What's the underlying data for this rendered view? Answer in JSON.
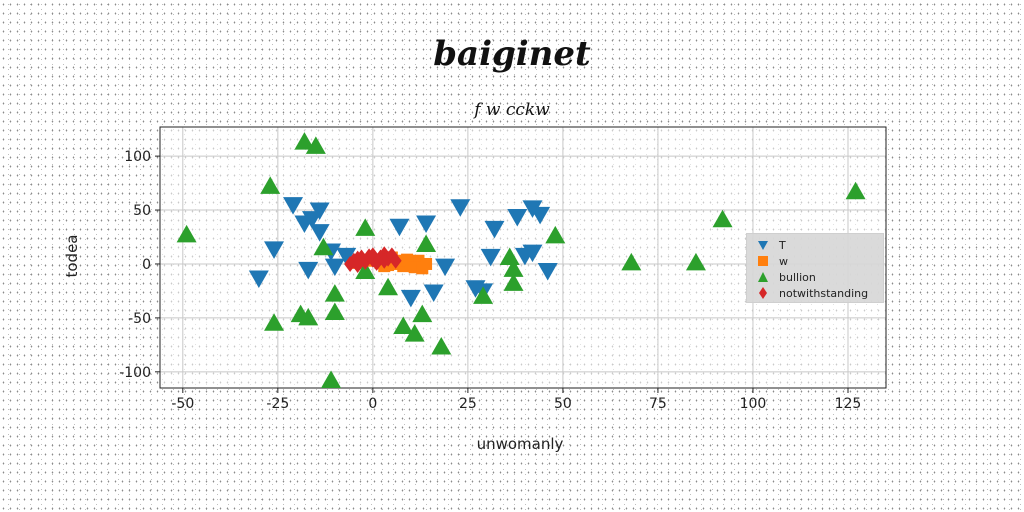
{
  "title": "baiginet",
  "subtitle": "f w cckw",
  "chart_data": {
    "type": "scatter",
    "xlabel": "unwomanly",
    "ylabel": "todea",
    "xlim": [
      -56,
      135
    ],
    "ylim": [
      -115,
      127
    ],
    "xticks": [
      -50,
      -25,
      0,
      25,
      50,
      75,
      100,
      125
    ],
    "yticks": [
      -100,
      -50,
      0,
      50,
      100
    ],
    "grid": true,
    "legend_position": "center-right",
    "series": [
      {
        "name": "T",
        "marker": "triangle-down",
        "color": "#1f77b4",
        "points": [
          [
            -30,
            -13
          ],
          [
            -26,
            14
          ],
          [
            -21,
            55
          ],
          [
            -18,
            38
          ],
          [
            -16,
            42
          ],
          [
            -14,
            50
          ],
          [
            -14,
            30
          ],
          [
            -17,
            -5
          ],
          [
            -11,
            12
          ],
          [
            -7,
            8
          ],
          [
            -10,
            -2
          ],
          [
            7,
            35
          ],
          [
            14,
            38
          ],
          [
            23,
            53
          ],
          [
            19,
            -2
          ],
          [
            27,
            -22
          ],
          [
            29,
            -25
          ],
          [
            31,
            7
          ],
          [
            32,
            33
          ],
          [
            38,
            44
          ],
          [
            42,
            52
          ],
          [
            44,
            46
          ],
          [
            42,
            11
          ],
          [
            40,
            8
          ],
          [
            46,
            -6
          ],
          [
            10,
            -31
          ],
          [
            16,
            -26
          ]
        ]
      },
      {
        "name": "w",
        "marker": "square",
        "color": "#ff7f0e",
        "points": [
          [
            -4,
            1
          ],
          [
            -2,
            4
          ],
          [
            0,
            3
          ],
          [
            2,
            1
          ],
          [
            4,
            -1
          ],
          [
            6,
            0
          ],
          [
            8,
            -2
          ],
          [
            10,
            1
          ],
          [
            12,
            3
          ],
          [
            14,
            0
          ],
          [
            5,
            6
          ],
          [
            9,
            4
          ],
          [
            11,
            -3
          ],
          [
            7,
            3
          ],
          [
            3,
            -2
          ],
          [
            13,
            -4
          ]
        ]
      },
      {
        "name": "bullion",
        "marker": "triangle-up",
        "color": "#2ca02c",
        "points": [
          [
            -49,
            27
          ],
          [
            -27,
            72
          ],
          [
            -18,
            113
          ],
          [
            -15,
            109
          ],
          [
            -26,
            -55
          ],
          [
            -19,
            -47
          ],
          [
            -17,
            -50
          ],
          [
            -13,
            15
          ],
          [
            -10,
            -28
          ],
          [
            -10,
            -45
          ],
          [
            -11,
            -108
          ],
          [
            -2,
            33
          ],
          [
            -2,
            -7
          ],
          [
            4,
            -22
          ],
          [
            8,
            -58
          ],
          [
            11,
            -65
          ],
          [
            13,
            -47
          ],
          [
            18,
            -77
          ],
          [
            14,
            18
          ],
          [
            29,
            -30
          ],
          [
            36,
            6
          ],
          [
            37,
            -5
          ],
          [
            37,
            -18
          ],
          [
            48,
            26
          ],
          [
            68,
            1
          ],
          [
            85,
            1
          ],
          [
            92,
            41
          ],
          [
            127,
            67
          ]
        ]
      },
      {
        "name": "notwithstanding",
        "marker": "diamond",
        "color": "#d62728",
        "points": [
          [
            -6,
            0
          ],
          [
            -5,
            3
          ],
          [
            -4,
            5
          ],
          [
            -3,
            6
          ],
          [
            -2,
            2
          ],
          [
            -1,
            7
          ],
          [
            0,
            4
          ],
          [
            0,
            8
          ],
          [
            1,
            1
          ],
          [
            2,
            6
          ],
          [
            3,
            9
          ],
          [
            3,
            3
          ],
          [
            4,
            5
          ],
          [
            5,
            8
          ],
          [
            -4,
            -1
          ],
          [
            6,
            3
          ]
        ]
      }
    ]
  }
}
